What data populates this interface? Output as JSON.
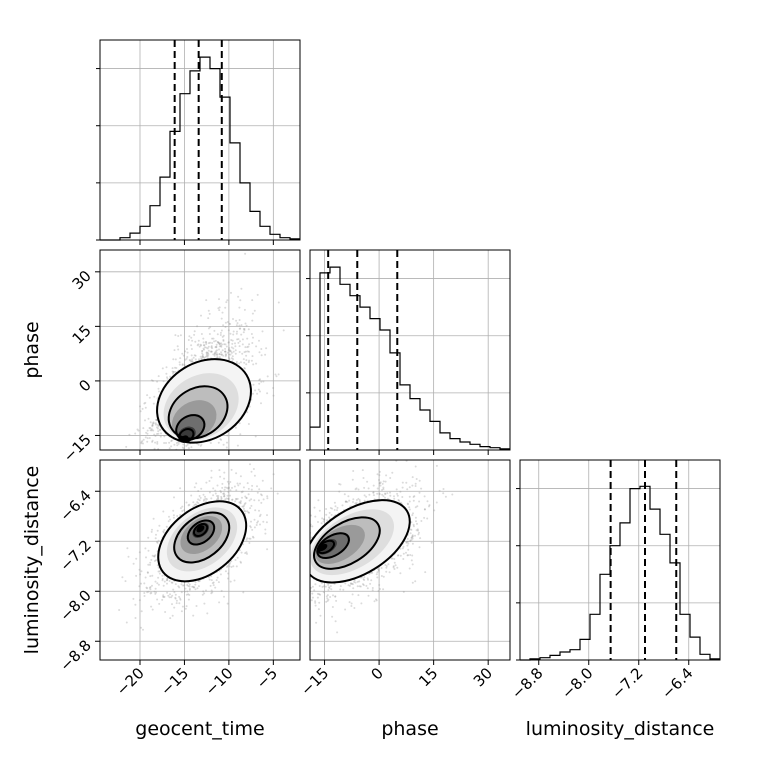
{
  "chart_data": {
    "type": "corner",
    "parameters": [
      "geocent_time",
      "phase",
      "luminosity_distance"
    ],
    "axis_labels": [
      "geocent_time",
      "phase",
      "luminosity_distance"
    ],
    "ranges": {
      "geocent_time": [
        -24.5,
        -2.0
      ],
      "phase": [
        -19.0,
        36.0
      ],
      "luminosity_distance": [
        -9.1,
        -5.9
      ]
    },
    "ticks": {
      "geocent_time": {
        "values": [
          -20,
          -15,
          -10,
          -5
        ],
        "labels": [
          "−20",
          "−15",
          "−10",
          "−5"
        ]
      },
      "phase": {
        "values": [
          -15,
          0,
          15,
          30
        ],
        "labels": [
          "−15",
          "0",
          "15",
          "30"
        ]
      },
      "luminosity_distance": {
        "values": [
          -8.8,
          -8.0,
          -7.2,
          -6.4
        ],
        "labels": [
          "−8.8",
          "−8.0",
          "−7.2",
          "−6.4"
        ]
      }
    },
    "histograms": [
      {
        "parameter": "geocent_time",
        "bin_edges": [
          -24.5,
          -23.375,
          -22.25,
          -21.125,
          -20.0,
          -18.875,
          -17.75,
          -16.625,
          -15.5,
          -14.375,
          -13.25,
          -12.125,
          -11.0,
          -9.875,
          -8.75,
          -7.625,
          -6.5,
          -5.375,
          -4.25,
          -3.125,
          -2.0
        ],
        "counts": [
          0,
          0,
          2,
          6,
          12,
          30,
          55,
          95,
          128,
          148,
          160,
          150,
          125,
          85,
          50,
          25,
          12,
          5,
          2,
          1
        ],
        "quantiles": [
          -16.1,
          -13.4,
          -10.8
        ],
        "grid_values": [
          0,
          50,
          100,
          150
        ]
      },
      {
        "parameter": "phase",
        "bin_edges": [
          -19.0,
          -16.25,
          -13.5,
          -10.75,
          -8.0,
          -5.25,
          -2.5,
          0.25,
          3.0,
          5.75,
          8.5,
          11.25,
          14.0,
          16.75,
          19.5,
          22.25,
          25.0,
          27.75,
          30.5,
          33.25,
          36.0
        ],
        "counts": [
          20,
          155,
          160,
          145,
          135,
          125,
          115,
          105,
          85,
          57,
          45,
          35,
          25,
          15,
          10,
          7,
          5,
          3,
          2,
          1
        ],
        "quantiles": [
          -14.0,
          -6.0,
          5.0
        ],
        "grid_values": [
          0,
          50,
          100,
          150
        ]
      },
      {
        "parameter": "luminosity_distance",
        "bin_edges": [
          -9.1,
          -8.94,
          -8.78,
          -8.62,
          -8.46,
          -8.3,
          -8.14,
          -7.98,
          -7.82,
          -7.66,
          -7.5,
          -7.34,
          -7.18,
          -7.02,
          -6.86,
          -6.7,
          -6.54,
          -6.38,
          -6.22,
          -6.06,
          -5.9
        ],
        "counts": [
          0,
          1,
          2,
          4,
          7,
          9,
          18,
          40,
          75,
          100,
          120,
          150,
          152,
          132,
          110,
          85,
          40,
          20,
          5,
          1
        ],
        "quantiles": [
          -7.65,
          -7.1,
          -6.6
        ],
        "grid_values": [
          0,
          50,
          100,
          150
        ]
      }
    ],
    "scatter_2d": [
      {
        "x_param": "geocent_time",
        "y_param": "phase",
        "center": [
          -12.8,
          -5.5
        ],
        "spread": [
          2.8,
          8.5
        ],
        "correlation": 0.45,
        "peak": [
          -15.0,
          -16.0
        ],
        "grid": true
      },
      {
        "x_param": "geocent_time",
        "y_param": "luminosity_distance",
        "center": [
          -13.0,
          -7.2
        ],
        "spread": [
          2.8,
          0.42
        ],
        "correlation": 0.55,
        "peak": [
          -13.2,
          -7.0
        ],
        "grid": true
      },
      {
        "x_param": "phase",
        "y_param": "luminosity_distance",
        "center": [
          -6.0,
          -7.2
        ],
        "spread": [
          8.0,
          0.42
        ],
        "correlation": 0.45,
        "peak": [
          -15.5,
          -7.3
        ],
        "grid": true
      }
    ]
  }
}
